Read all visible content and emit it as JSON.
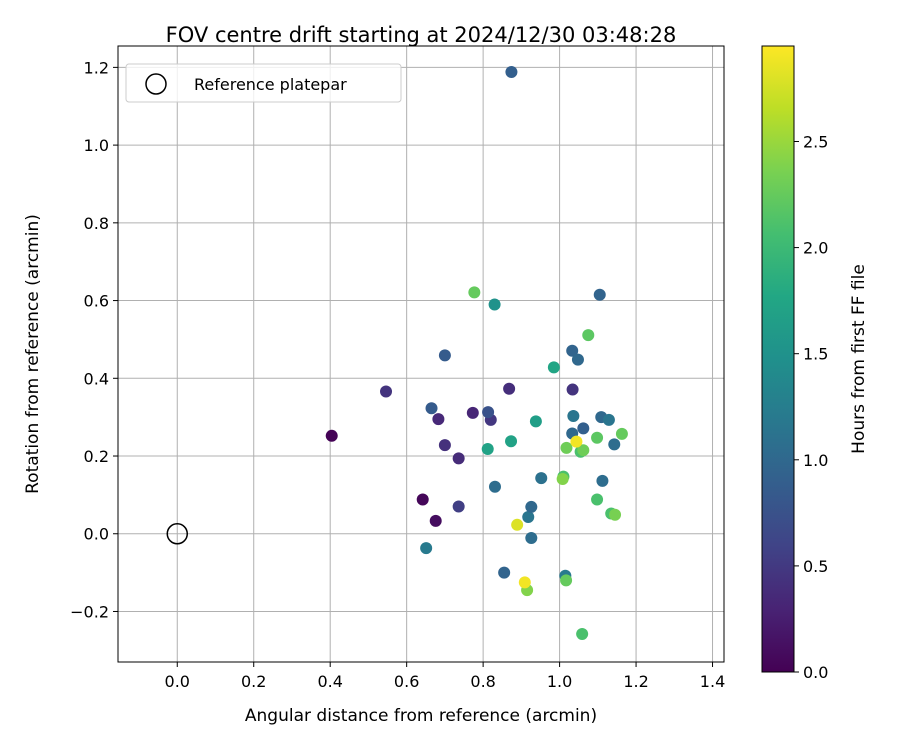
{
  "chart_data": {
    "type": "scatter",
    "title": "FOV centre drift starting at 2024/12/30 03:48:28",
    "xlabel": "Angular distance from reference (arcmin)",
    "ylabel": "Rotation from reference (arcmin)",
    "xlim": [
      -0.155,
      1.43
    ],
    "ylim": [
      -0.33,
      1.255
    ],
    "x_ticks": [
      0.0,
      0.2,
      0.4,
      0.6,
      0.8,
      1.0,
      1.2,
      1.4
    ],
    "x_tick_labels": [
      "0.0",
      "0.2",
      "0.4",
      "0.6",
      "0.8",
      "1.0",
      "1.2",
      "1.4"
    ],
    "y_ticks": [
      -0.2,
      0.0,
      0.2,
      0.4,
      0.6,
      0.8,
      1.0,
      1.2
    ],
    "y_tick_labels": [
      "−0.2",
      "0.0",
      "0.2",
      "0.4",
      "0.6",
      "0.8",
      "1.0",
      "1.2"
    ],
    "grid": true,
    "legend": {
      "placement": "top-left",
      "entries": [
        "Reference platepar"
      ]
    },
    "reference_point": {
      "x": 0.0,
      "y": 0.0
    },
    "colorbar": {
      "label": "Hours from first FF file",
      "colormap": "viridis",
      "range": [
        0,
        2.95
      ],
      "ticks": [
        0.0,
        0.5,
        1.0,
        1.5,
        2.0,
        2.5
      ],
      "tick_labels": [
        "0.0",
        "0.5",
        "1.0",
        "1.5",
        "2.0",
        "2.5"
      ]
    },
    "points": [
      {
        "x": 0.404,
        "y": 0.252,
        "c": 0.02
      },
      {
        "x": 0.642,
        "y": 0.088,
        "c": 0.05
      },
      {
        "x": 0.676,
        "y": 0.033,
        "c": 0.1
      },
      {
        "x": 0.546,
        "y": 0.366,
        "c": 0.45
      },
      {
        "x": 0.683,
        "y": 0.295,
        "c": 0.35
      },
      {
        "x": 0.7,
        "y": 0.228,
        "c": 0.42
      },
      {
        "x": 0.736,
        "y": 0.194,
        "c": 0.38
      },
      {
        "x": 0.736,
        "y": 0.07,
        "c": 0.55
      },
      {
        "x": 0.773,
        "y": 0.311,
        "c": 0.32
      },
      {
        "x": 0.868,
        "y": 0.373,
        "c": 0.4
      },
      {
        "x": 0.82,
        "y": 0.293,
        "c": 0.48
      },
      {
        "x": 1.034,
        "y": 0.371,
        "c": 0.45
      },
      {
        "x": 0.665,
        "y": 0.323,
        "c": 0.85
      },
      {
        "x": 0.7,
        "y": 0.459,
        "c": 0.85
      },
      {
        "x": 0.651,
        "y": -0.037,
        "c": 1.2
      },
      {
        "x": 0.813,
        "y": 0.313,
        "c": 0.75
      },
      {
        "x": 0.831,
        "y": 0.121,
        "c": 1.05
      },
      {
        "x": 0.855,
        "y": -0.1,
        "c": 0.95
      },
      {
        "x": 0.874,
        "y": 1.188,
        "c": 0.9
      },
      {
        "x": 0.918,
        "y": 0.043,
        "c": 1.15
      },
      {
        "x": 0.926,
        "y": -0.011,
        "c": 1.05
      },
      {
        "x": 0.926,
        "y": 0.069,
        "c": 1.0
      },
      {
        "x": 0.952,
        "y": 0.143,
        "c": 1.1
      },
      {
        "x": 1.033,
        "y": 0.471,
        "c": 0.95
      },
      {
        "x": 1.048,
        "y": 0.448,
        "c": 1.0
      },
      {
        "x": 1.105,
        "y": 0.615,
        "c": 0.95
      },
      {
        "x": 1.036,
        "y": 0.303,
        "c": 1.15
      },
      {
        "x": 1.033,
        "y": 0.258,
        "c": 1.0
      },
      {
        "x": 1.062,
        "y": 0.271,
        "c": 0.9
      },
      {
        "x": 1.109,
        "y": 0.3,
        "c": 1.0
      },
      {
        "x": 1.129,
        "y": 0.293,
        "c": 1.15
      },
      {
        "x": 1.143,
        "y": 0.23,
        "c": 1.05
      },
      {
        "x": 1.112,
        "y": 0.136,
        "c": 1.05
      },
      {
        "x": 1.015,
        "y": -0.108,
        "c": 1.2
      },
      {
        "x": 0.83,
        "y": 0.59,
        "c": 1.5
      },
      {
        "x": 0.812,
        "y": 0.218,
        "c": 1.7
      },
      {
        "x": 0.873,
        "y": 0.238,
        "c": 1.7
      },
      {
        "x": 0.938,
        "y": 0.289,
        "c": 1.65
      },
      {
        "x": 0.985,
        "y": 0.428,
        "c": 1.75
      },
      {
        "x": 0.777,
        "y": 0.621,
        "c": 2.25
      },
      {
        "x": 1.075,
        "y": 0.511,
        "c": 2.2
      },
      {
        "x": 1.018,
        "y": 0.221,
        "c": 2.3
      },
      {
        "x": 1.055,
        "y": 0.211,
        "c": 2.1
      },
      {
        "x": 1.062,
        "y": 0.215,
        "c": 2.3
      },
      {
        "x": 1.098,
        "y": 0.247,
        "c": 2.2
      },
      {
        "x": 1.163,
        "y": 0.257,
        "c": 2.25
      },
      {
        "x": 1.01,
        "y": 0.147,
        "c": 2.1
      },
      {
        "x": 1.008,
        "y": 0.141,
        "c": 2.4
      },
      {
        "x": 1.098,
        "y": 0.088,
        "c": 2.1
      },
      {
        "x": 1.135,
        "y": 0.052,
        "c": 2.1
      },
      {
        "x": 1.145,
        "y": 0.049,
        "c": 2.35
      },
      {
        "x": 1.017,
        "y": -0.12,
        "c": 2.25
      },
      {
        "x": 0.915,
        "y": -0.145,
        "c": 2.4
      },
      {
        "x": 1.059,
        "y": -0.258,
        "c": 2.1
      },
      {
        "x": 1.044,
        "y": 0.237,
        "c": 2.9
      },
      {
        "x": 0.889,
        "y": 0.023,
        "c": 2.8
      },
      {
        "x": 0.909,
        "y": -0.125,
        "c": 2.9
      }
    ]
  }
}
